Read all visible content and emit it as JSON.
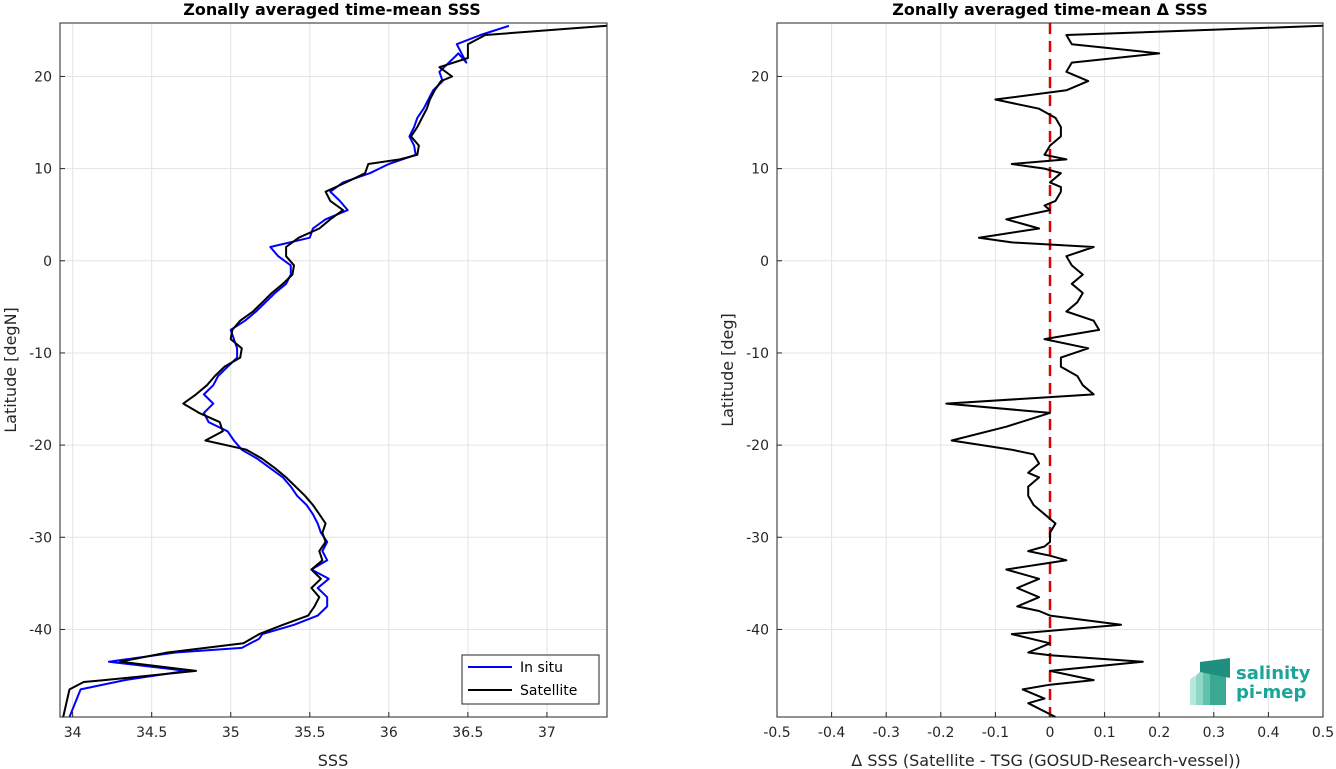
{
  "chart_data": [
    {
      "type": "line",
      "title": "Zonally averaged time-mean SSS",
      "xlabel": "SSS",
      "ylabel": "Latitude [degN]",
      "xlim": [
        33.92,
        37.38
      ],
      "ylim": [
        -49.5,
        25.8
      ],
      "xticks": [
        "34",
        "34.5",
        "35",
        "35.5",
        "36",
        "36.5",
        "37"
      ],
      "yticks": [
        "20",
        "10",
        "0",
        "-10",
        "-20",
        "-30",
        "-40"
      ],
      "grid": true,
      "legend_position": "bottom-right",
      "colors": {
        "In situ": "#0000ff",
        "Satellite": "#000000"
      },
      "series": [
        {
          "name": "In situ",
          "points": [
            [
              36.76,
              25.5
            ],
            [
              36.58,
              24.5
            ],
            [
              36.43,
              23.5
            ],
            [
              36.49,
              21.5
            ],
            [
              36.44,
              22.5
            ],
            [
              36.32,
              20.5
            ],
            [
              36.34,
              19.5
            ],
            [
              36.28,
              18.5
            ],
            [
              36.25,
              17.5
            ],
            [
              36.22,
              16.5
            ],
            [
              36.18,
              15.5
            ],
            [
              36.16,
              14.5
            ],
            [
              36.13,
              13.5
            ],
            [
              36.16,
              12.5
            ],
            [
              36.17,
              11.5
            ],
            [
              36.0,
              10.5
            ],
            [
              35.88,
              9.5
            ],
            [
              35.71,
              8.5
            ],
            [
              35.63,
              7.5
            ],
            [
              35.69,
              6.5
            ],
            [
              35.74,
              5.5
            ],
            [
              35.6,
              4.5
            ],
            [
              35.52,
              3.5
            ],
            [
              35.5,
              2.5
            ],
            [
              35.25,
              1.5
            ],
            [
              35.3,
              0.5
            ],
            [
              35.38,
              -0.5
            ],
            [
              35.38,
              -1.5
            ],
            [
              35.35,
              -2.5
            ],
            [
              35.28,
              -3.5
            ],
            [
              35.22,
              -4.5
            ],
            [
              35.16,
              -5.5
            ],
            [
              35.09,
              -6.5
            ],
            [
              35.0,
              -7.5
            ],
            [
              35.02,
              -8.5
            ],
            [
              35.04,
              -9.5
            ],
            [
              35.04,
              -10.5
            ],
            [
              34.98,
              -11.5
            ],
            [
              34.92,
              -12.5
            ],
            [
              34.89,
              -13.5
            ],
            [
              34.83,
              -14.5
            ],
            [
              34.89,
              -15.5
            ],
            [
              34.83,
              -16.5
            ],
            [
              34.86,
              -17.5
            ],
            [
              34.98,
              -18.5
            ],
            [
              35.02,
              -19.5
            ],
            [
              35.07,
              -20.5
            ],
            [
              35.17,
              -21.5
            ],
            [
              35.25,
              -22.5
            ],
            [
              35.33,
              -23.5
            ],
            [
              35.38,
              -24.5
            ],
            [
              35.42,
              -25.5
            ],
            [
              35.48,
              -26.5
            ],
            [
              35.52,
              -27.5
            ],
            [
              35.55,
              -28.5
            ],
            [
              35.57,
              -29.5
            ],
            [
              35.61,
              -30.5
            ],
            [
              35.58,
              -31.5
            ],
            [
              35.61,
              -32.5
            ],
            [
              35.51,
              -33.5
            ],
            [
              35.62,
              -34.5
            ],
            [
              35.55,
              -35.5
            ],
            [
              35.61,
              -36.5
            ],
            [
              35.61,
              -37.5
            ],
            [
              35.55,
              -38.5
            ],
            [
              35.4,
              -39.5
            ],
            [
              35.2,
              -40.5
            ],
            [
              35.18,
              -41.0
            ],
            [
              35.07,
              -42.0
            ],
            [
              34.65,
              -42.5
            ],
            [
              34.23,
              -43.5
            ],
            [
              34.72,
              -44.5
            ],
            [
              34.33,
              -45.5
            ],
            [
              34.05,
              -46.5
            ],
            [
              33.98,
              -49.5
            ]
          ]
        },
        {
          "name": "Satellite",
          "points": [
            [
              37.38,
              25.5
            ],
            [
              36.61,
              24.5
            ],
            [
              36.5,
              23.5
            ],
            [
              36.5,
              22.0
            ],
            [
              36.32,
              21.0
            ],
            [
              36.4,
              20.0
            ],
            [
              36.33,
              19.5
            ],
            [
              36.29,
              18.5
            ],
            [
              36.26,
              17.5
            ],
            [
              36.24,
              16.5
            ],
            [
              36.21,
              15.5
            ],
            [
              36.18,
              14.5
            ],
            [
              36.14,
              13.5
            ],
            [
              36.19,
              12.5
            ],
            [
              36.18,
              11.5
            ],
            [
              36.07,
              11.0
            ],
            [
              35.87,
              10.5
            ],
            [
              35.85,
              9.5
            ],
            [
              35.73,
              8.5
            ],
            [
              35.6,
              7.5
            ],
            [
              35.63,
              6.5
            ],
            [
              35.71,
              5.5
            ],
            [
              35.63,
              4.5
            ],
            [
              35.56,
              3.5
            ],
            [
              35.43,
              2.5
            ],
            [
              35.35,
              1.5
            ],
            [
              35.35,
              0.5
            ],
            [
              35.4,
              -0.5
            ],
            [
              35.39,
              -1.5
            ],
            [
              35.33,
              -2.5
            ],
            [
              35.26,
              -3.5
            ],
            [
              35.2,
              -4.5
            ],
            [
              35.14,
              -5.5
            ],
            [
              35.06,
              -6.5
            ],
            [
              35.01,
              -7.5
            ],
            [
              35.0,
              -8.5
            ],
            [
              35.07,
              -9.5
            ],
            [
              35.06,
              -10.5
            ],
            [
              34.96,
              -11.5
            ],
            [
              34.9,
              -12.5
            ],
            [
              34.85,
              -13.5
            ],
            [
              34.78,
              -14.5
            ],
            [
              34.7,
              -15.5
            ],
            [
              34.8,
              -16.5
            ],
            [
              34.93,
              -17.5
            ],
            [
              34.95,
              -18.5
            ],
            [
              34.84,
              -19.5
            ],
            [
              35.1,
              -20.5
            ],
            [
              35.2,
              -21.5
            ],
            [
              35.28,
              -22.5
            ],
            [
              35.35,
              -23.5
            ],
            [
              35.41,
              -24.5
            ],
            [
              35.47,
              -25.5
            ],
            [
              35.52,
              -26.5
            ],
            [
              35.56,
              -27.5
            ],
            [
              35.6,
              -28.5
            ],
            [
              35.58,
              -29.5
            ],
            [
              35.6,
              -30.5
            ],
            [
              35.56,
              -31.5
            ],
            [
              35.58,
              -32.5
            ],
            [
              35.51,
              -33.5
            ],
            [
              35.57,
              -34.5
            ],
            [
              35.51,
              -35.5
            ],
            [
              35.56,
              -36.5
            ],
            [
              35.53,
              -37.5
            ],
            [
              35.49,
              -38.5
            ],
            [
              35.33,
              -39.5
            ],
            [
              35.18,
              -40.5
            ],
            [
              35.08,
              -41.5
            ],
            [
              34.6,
              -42.5
            ],
            [
              34.3,
              -43.5
            ],
            [
              34.78,
              -44.5
            ],
            [
              34.2,
              -45.5
            ],
            [
              34.07,
              -45.7
            ],
            [
              33.98,
              -46.5
            ],
            [
              33.94,
              -49.5
            ]
          ]
        }
      ]
    },
    {
      "type": "line",
      "title": "Zonally averaged time-mean Δ SSS",
      "xlabel": "Δ SSS (Satellite - TSG (GOSUD-Research-vessel))",
      "ylabel": "Latitude [deg]",
      "xlim": [
        -0.5,
        0.5
      ],
      "ylim": [
        -49.5,
        25.8
      ],
      "xticks": [
        "-0.5",
        "-0.4",
        "-0.3",
        "-0.2",
        "-0.1",
        "0",
        "0.1",
        "0.2",
        "0.3",
        "0.4",
        "0.5"
      ],
      "yticks": [
        "20",
        "10",
        "0",
        "-10",
        "-20",
        "-30",
        "-40"
      ],
      "grid": true,
      "reference_line": {
        "x": 0,
        "color": "#e00000",
        "style": "dashed"
      },
      "series": [
        {
          "points": [
            [
              0.5,
              25.5
            ],
            [
              0.03,
              24.5
            ],
            [
              0.04,
              23.5
            ],
            [
              0.2,
              22.5
            ],
            [
              0.04,
              21.5
            ],
            [
              0.03,
              20.5
            ],
            [
              0.07,
              19.5
            ],
            [
              0.03,
              18.5
            ],
            [
              -0.1,
              17.5
            ],
            [
              -0.02,
              16.5
            ],
            [
              0.01,
              15.5
            ],
            [
              0.02,
              14.5
            ],
            [
              0.02,
              13.5
            ],
            [
              0.0,
              12.5
            ],
            [
              -0.01,
              11.5
            ],
            [
              0.03,
              11.0
            ],
            [
              -0.07,
              10.5
            ],
            [
              -0.01,
              10.0
            ],
            [
              0.02,
              9.5
            ],
            [
              0.0,
              8.5
            ],
            [
              0.02,
              8.0
            ],
            [
              0.02,
              7.5
            ],
            [
              0.01,
              6.5
            ],
            [
              -0.01,
              6.0
            ],
            [
              0.0,
              5.5
            ],
            [
              -0.08,
              4.5
            ],
            [
              -0.05,
              4.0
            ],
            [
              -0.02,
              3.5
            ],
            [
              -0.13,
              2.5
            ],
            [
              -0.07,
              2.0
            ],
            [
              0.08,
              1.5
            ],
            [
              0.03,
              0.5
            ],
            [
              0.04,
              -0.5
            ],
            [
              0.06,
              -1.5
            ],
            [
              0.04,
              -2.5
            ],
            [
              0.06,
              -3.5
            ],
            [
              0.05,
              -4.5
            ],
            [
              0.03,
              -5.5
            ],
            [
              0.08,
              -6.5
            ],
            [
              0.09,
              -7.5
            ],
            [
              -0.01,
              -8.5
            ],
            [
              0.07,
              -9.5
            ],
            [
              0.02,
              -10.5
            ],
            [
              0.02,
              -11.5
            ],
            [
              0.05,
              -12.5
            ],
            [
              0.06,
              -13.5
            ],
            [
              0.08,
              -14.5
            ],
            [
              -0.19,
              -15.5
            ],
            [
              0.0,
              -16.5
            ],
            [
              -0.08,
              -18.0
            ],
            [
              -0.18,
              -19.5
            ],
            [
              -0.07,
              -20.5
            ],
            [
              -0.03,
              -21.0
            ],
            [
              -0.02,
              -22.0
            ],
            [
              -0.04,
              -23.0
            ],
            [
              -0.02,
              -23.5
            ],
            [
              -0.04,
              -24.5
            ],
            [
              -0.04,
              -25.5
            ],
            [
              -0.03,
              -26.5
            ],
            [
              -0.01,
              -27.5
            ],
            [
              0.01,
              -28.5
            ],
            [
              0.0,
              -29.5
            ],
            [
              0.0,
              -30.5
            ],
            [
              -0.01,
              -31.0
            ],
            [
              -0.04,
              -31.5
            ],
            [
              0.0,
              -32.0
            ],
            [
              0.03,
              -32.5
            ],
            [
              -0.08,
              -33.5
            ],
            [
              -0.02,
              -34.5
            ],
            [
              -0.06,
              -35.5
            ],
            [
              -0.02,
              -36.5
            ],
            [
              -0.06,
              -37.5
            ],
            [
              -0.02,
              -38.0
            ],
            [
              0.0,
              -38.5
            ],
            [
              0.13,
              -39.5
            ],
            [
              -0.07,
              -40.5
            ],
            [
              0.0,
              -41.5
            ],
            [
              -0.04,
              -42.5
            ],
            [
              0.0,
              -42.8
            ],
            [
              0.17,
              -43.5
            ],
            [
              0.0,
              -44.5
            ],
            [
              0.08,
              -45.5
            ],
            [
              0.0,
              -46.0
            ],
            [
              -0.05,
              -46.5
            ],
            [
              -0.01,
              -47.5
            ],
            [
              -0.04,
              -48.0
            ],
            [
              0.01,
              -49.5
            ]
          ]
        }
      ]
    }
  ],
  "logo": {
    "line1": "salinity",
    "line2": "pi-mep",
    "colors": {
      "text": "#1aa598",
      "wave_dark": "#1f8f7f",
      "wave_light": "#8fd8c6"
    }
  }
}
